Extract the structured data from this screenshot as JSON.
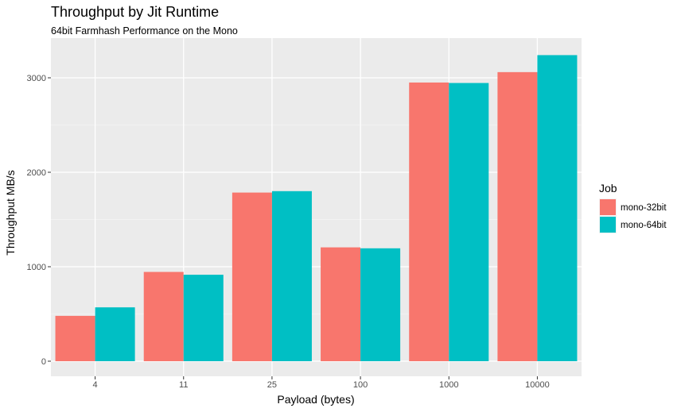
{
  "chart_data": {
    "type": "bar",
    "title": "Throughput by Jit Runtime",
    "subtitle": "64bit Farmhash Performance on the Mono",
    "xlabel": "Payload (bytes)",
    "ylabel": "Throughput MB/s",
    "categories": [
      "4",
      "11",
      "25",
      "100",
      "1000",
      "10000"
    ],
    "series": [
      {
        "name": "mono-32bit",
        "color": "#F8766D",
        "values": [
          480,
          945,
          1785,
          1205,
          2950,
          3060
        ]
      },
      {
        "name": "mono-64bit",
        "color": "#00BFC4",
        "values": [
          570,
          915,
          1800,
          1195,
          2945,
          3240
        ]
      }
    ],
    "ylim": [
      0,
      3330
    ],
    "yticks": [
      0,
      1000,
      2000,
      3000
    ],
    "grid": true,
    "legend": {
      "title": "Job",
      "position": "right"
    },
    "panel_background": "#EBEBEB"
  }
}
